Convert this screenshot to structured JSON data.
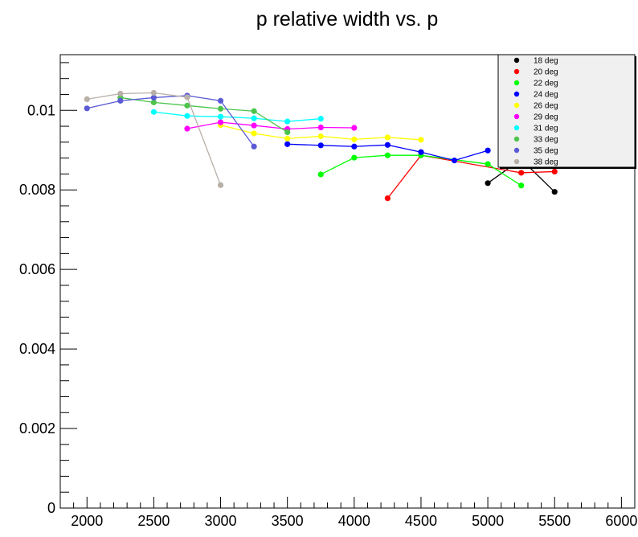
{
  "chart_data": {
    "type": "scatter",
    "title": "p relative width vs. p",
    "xlabel": "",
    "ylabel": "",
    "xlim": [
      1800,
      6100
    ],
    "ylim": [
      0,
      0.0114
    ],
    "grid": false,
    "legend_position": "top-right",
    "x_ticks": [
      2000,
      2500,
      3000,
      3500,
      4000,
      4500,
      5000,
      5500,
      6000
    ],
    "y_ticks": [
      0,
      0.002,
      0.004,
      0.006,
      0.008,
      0.01
    ],
    "series": [
      {
        "name": "18 deg",
        "color": "#000000",
        "x": [
          5000,
          5250,
          5500
        ],
        "y": [
          0.00817,
          0.00877,
          0.00795
        ]
      },
      {
        "name": "20 deg",
        "color": "#ff0000",
        "x": [
          4250,
          4500,
          5250,
          5500
        ],
        "y": [
          0.00779,
          0.00887,
          0.00843,
          0.00846
        ]
      },
      {
        "name": "22 deg",
        "color": "#00ff00",
        "x": [
          3750,
          4000,
          4250,
          4500,
          5000,
          5250
        ],
        "y": [
          0.00839,
          0.00881,
          0.00887,
          0.00887,
          0.00865,
          0.00811
        ]
      },
      {
        "name": "24 deg",
        "color": "#0000ff",
        "x": [
          3500,
          3750,
          4000,
          4250,
          4500,
          4750,
          5000
        ],
        "y": [
          0.00915,
          0.00912,
          0.00909,
          0.00913,
          0.00895,
          0.00874,
          0.00899
        ]
      },
      {
        "name": "26 deg",
        "color": "#ffff00",
        "x": [
          3000,
          3250,
          3500,
          3750,
          4000,
          4250,
          4500
        ],
        "y": [
          0.00963,
          0.00942,
          0.00929,
          0.00935,
          0.00927,
          0.00932,
          0.00926
        ]
      },
      {
        "name": "29 deg",
        "color": "#ff00ff",
        "x": [
          2750,
          3000,
          3250,
          3500,
          3750,
          4000
        ],
        "y": [
          0.00954,
          0.0097,
          0.00962,
          0.00953,
          0.00957,
          0.00956
        ]
      },
      {
        "name": "31 deg",
        "color": "#00ffff",
        "x": [
          2500,
          2750,
          3000,
          3250,
          3500,
          3750
        ],
        "y": [
          0.00996,
          0.00986,
          0.00984,
          0.0098,
          0.00972,
          0.00979
        ]
      },
      {
        "name": "33 deg",
        "color": "#4cc44c",
        "x": [
          2250,
          2500,
          2750,
          3000,
          3250,
          3500
        ],
        "y": [
          0.01032,
          0.0102,
          0.01012,
          0.01004,
          0.00998,
          0.00945
        ]
      },
      {
        "name": "35 deg",
        "color": "#5b5bd6",
        "x": [
          2000,
          2250,
          2500,
          2750,
          3000,
          3250
        ],
        "y": [
          0.01005,
          0.01024,
          0.01032,
          0.01037,
          0.01024,
          0.00909
        ]
      },
      {
        "name": "38 deg",
        "color": "#b8b0a8",
        "x": [
          2000,
          2250,
          2500,
          2750,
          3000
        ],
        "y": [
          0.01028,
          0.01042,
          0.01044,
          0.01033,
          0.00812
        ]
      }
    ]
  }
}
